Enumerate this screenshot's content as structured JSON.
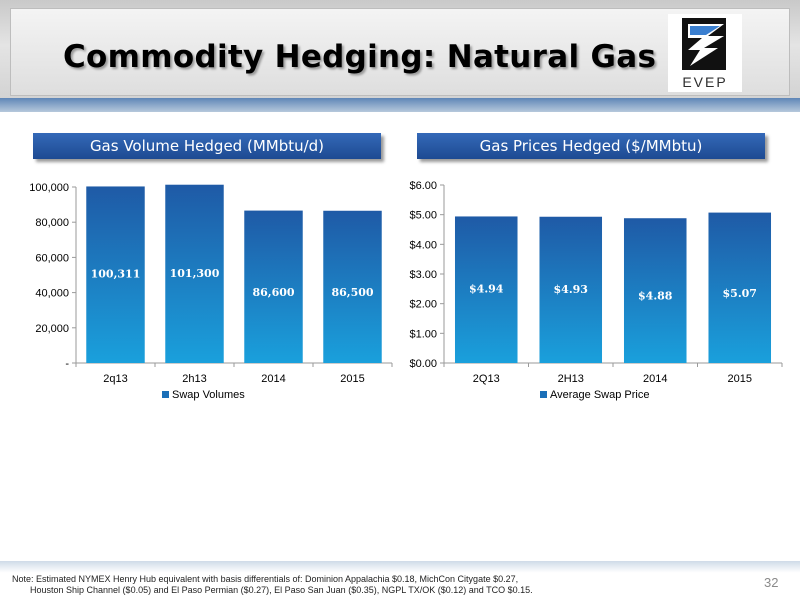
{
  "slide": {
    "title": "Commodity Hedging: Natural Gas",
    "logo_text": "EVEP",
    "page_number": "32",
    "footnote_line1": "Note: Estimated NYMEX Henry Hub equivalent with basis differentials of: Dominion Appalachia $0.18, MichCon Citygate $0.27,",
    "footnote_line2": "Houston Ship Channel ($0.05) and El Paso Permian ($0.27), El Paso San Juan ($0.35), NGPL TX/OK ($0.12) and TCO $0.15."
  },
  "colors": {
    "bar_top": "#1f5aa6",
    "bar_bottom": "#1aa0dc",
    "legend_swatch": "#1a6fb8"
  },
  "chart_data": [
    {
      "type": "bar",
      "title": "Gas Volume Hedged (MMbtu/d)",
      "categories": [
        "2q13",
        "2h13",
        "2014",
        "2015"
      ],
      "series": [
        {
          "name": "Swap Volumes",
          "values": [
            100311,
            101300,
            86600,
            86500
          ]
        }
      ],
      "data_labels": [
        "100,311",
        "101,300",
        "86,600",
        "86,500"
      ],
      "ylim": [
        0,
        100000
      ],
      "yticks": [
        0,
        20000,
        40000,
        60000,
        80000,
        100000
      ],
      "ytick_labels": [
        "-",
        "20,000",
        "40,000",
        "60,000",
        "80,000",
        "100,000"
      ],
      "legend": "bottom",
      "grid": false
    },
    {
      "type": "bar",
      "title": "Gas Prices Hedged ($/MMbtu)",
      "categories": [
        "2Q13",
        "2H13",
        "2014",
        "2015"
      ],
      "series": [
        {
          "name": "Average Swap Price",
          "values": [
            4.94,
            4.93,
            4.88,
            5.07
          ]
        }
      ],
      "data_labels": [
        "$4.94",
        "$4.93",
        "$4.88",
        "$5.07"
      ],
      "ylim": [
        0,
        6
      ],
      "yticks": [
        0,
        1,
        2,
        3,
        4,
        5,
        6
      ],
      "ytick_labels": [
        "$0.00",
        "$1.00",
        "$2.00",
        "$3.00",
        "$4.00",
        "$5.00",
        "$6.00"
      ],
      "legend": "bottom",
      "grid": false
    }
  ]
}
